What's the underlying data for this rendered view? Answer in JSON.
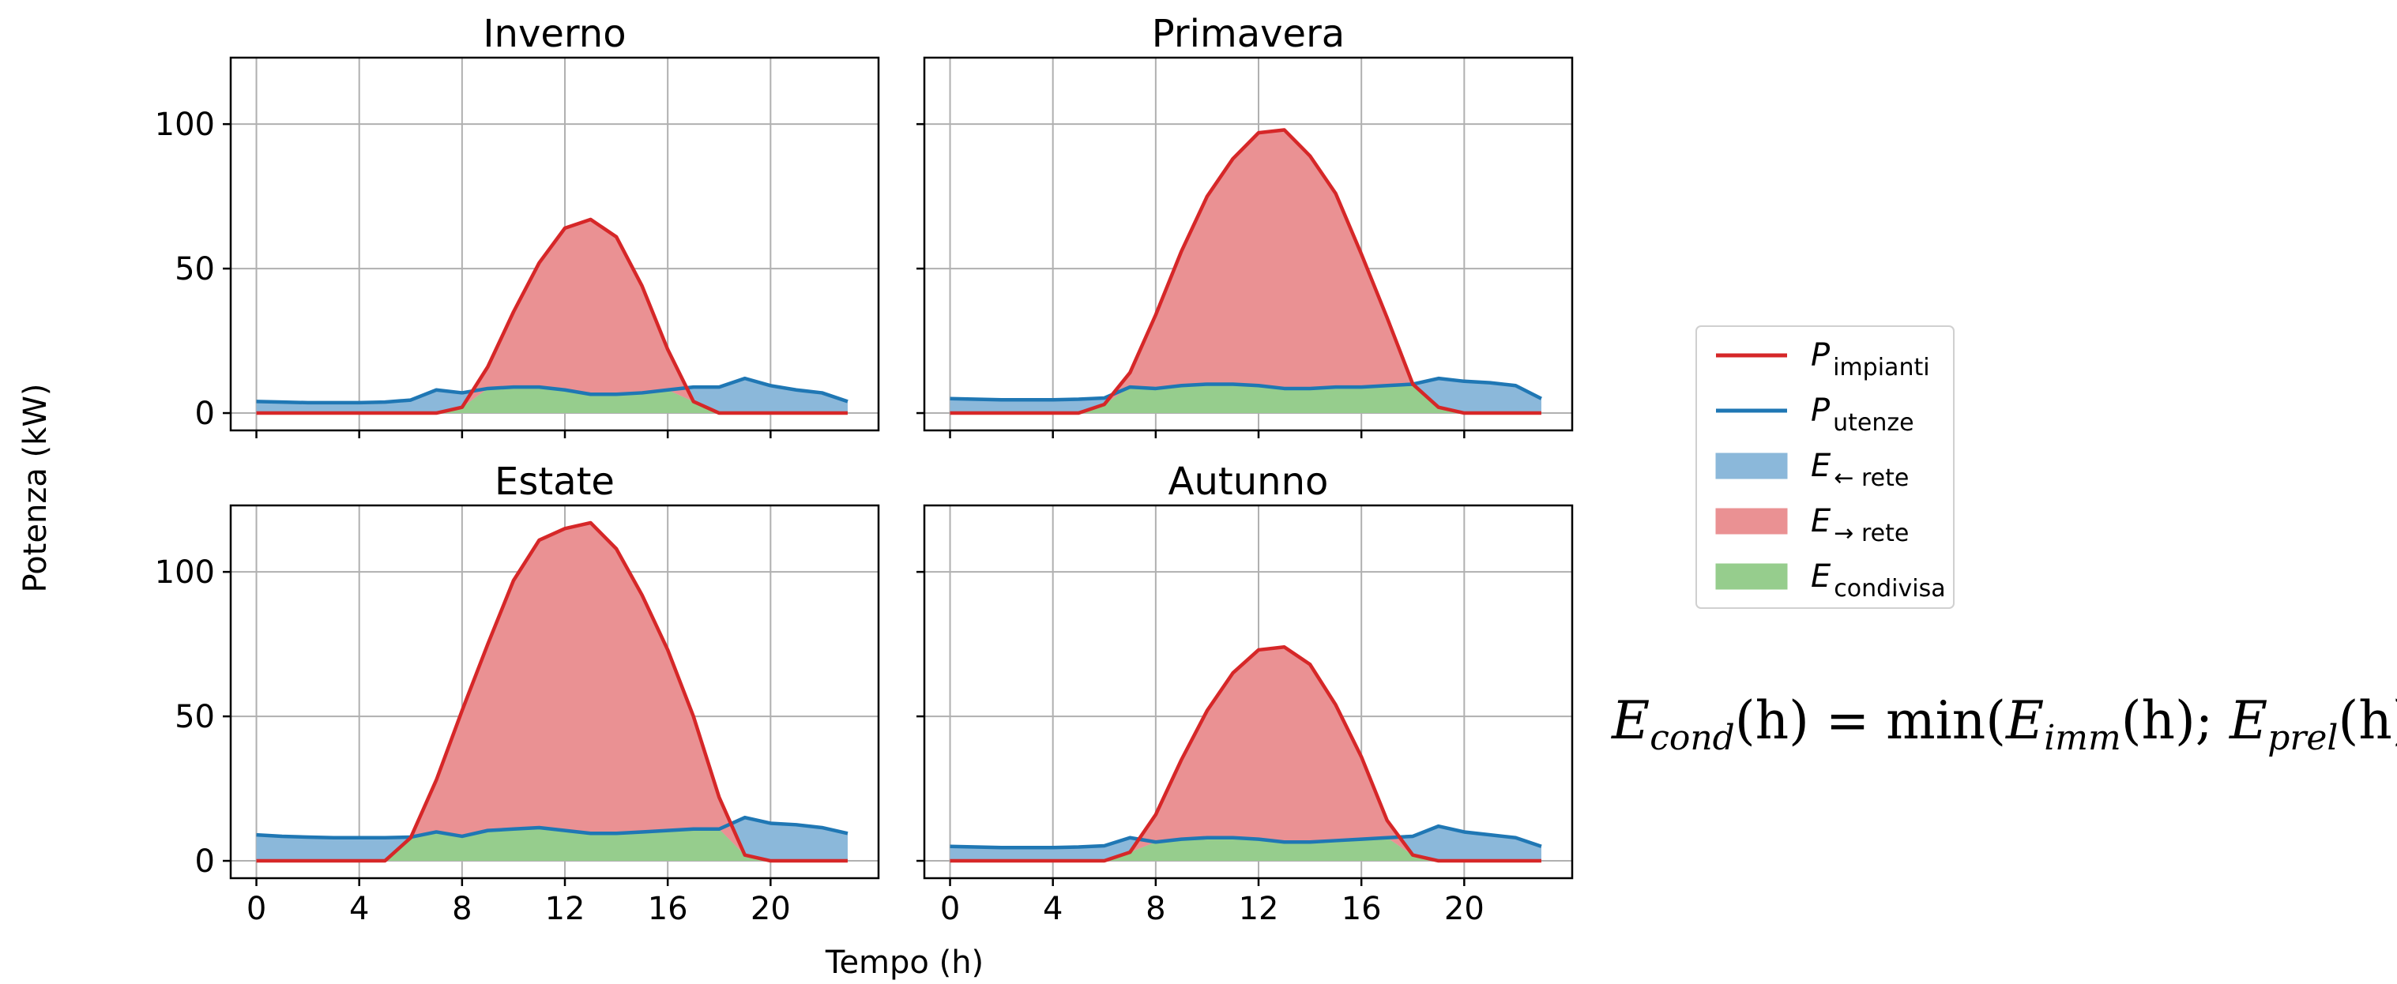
{
  "figure": {
    "ylabel": "Potenza (kW)",
    "xlabel": "Tempo (h)"
  },
  "legend": {
    "items": [
      {
        "key": "impianti",
        "symbol": "P",
        "sub": "impianti",
        "kind": "line",
        "color": "#d62728"
      },
      {
        "key": "utenze",
        "symbol": "P",
        "sub": "utenze",
        "kind": "line",
        "color": "#1f77b4"
      },
      {
        "key": "prelievo",
        "symbol": "E",
        "sub": "← rete",
        "kind": "patch",
        "color": "#8bb8da"
      },
      {
        "key": "immissione",
        "symbol": "E",
        "sub": "→ rete",
        "kind": "patch",
        "color": "#ea9193"
      },
      {
        "key": "condivisa",
        "symbol": "E",
        "sub": "condivisa",
        "kind": "patch",
        "color": "#96cd8d"
      }
    ],
    "placement": "center-right"
  },
  "formula": {
    "lhs_symbol": "E",
    "lhs_sub": "cond",
    "arg": "(h) = min(",
    "e1": "E",
    "e1_sub": "imm",
    "mid": "(h); ",
    "e2": "E",
    "e2_sub": "prel",
    "end": "(h))"
  },
  "chart_data": [
    {
      "type": "area",
      "title": "Inverno",
      "x": [
        0,
        1,
        2,
        3,
        4,
        5,
        6,
        7,
        8,
        9,
        10,
        11,
        12,
        13,
        14,
        15,
        16,
        17,
        18,
        19,
        20,
        21,
        22,
        23
      ],
      "xticks": [
        0,
        4,
        8,
        12,
        16,
        20
      ],
      "yticks": [
        0,
        50,
        100
      ],
      "xlim": [
        -1,
        24.2
      ],
      "ylim": [
        -6,
        123
      ],
      "grid": true,
      "series": [
        {
          "name": "P impianti",
          "values": [
            0,
            0,
            0,
            0,
            0,
            0,
            0,
            0,
            2,
            16,
            35,
            52,
            64,
            67,
            61,
            44,
            22,
            4,
            0,
            0,
            0,
            0,
            0,
            0
          ]
        },
        {
          "name": "P utenze",
          "values": [
            4,
            3.8,
            3.6,
            3.6,
            3.6,
            3.8,
            4.5,
            8,
            7,
            8.5,
            9,
            9,
            8,
            6.5,
            6.5,
            7,
            8,
            9,
            9,
            12,
            9.5,
            8,
            7,
            4
          ]
        }
      ]
    },
    {
      "type": "area",
      "title": "Primavera",
      "x": [
        0,
        1,
        2,
        3,
        4,
        5,
        6,
        7,
        8,
        9,
        10,
        11,
        12,
        13,
        14,
        15,
        16,
        17,
        18,
        19,
        20,
        21,
        22,
        23
      ],
      "xticks": [
        0,
        4,
        8,
        12,
        16,
        20
      ],
      "yticks": [
        0,
        50,
        100
      ],
      "xlim": [
        -1,
        24.2
      ],
      "ylim": [
        -6,
        123
      ],
      "grid": true,
      "series": [
        {
          "name": "P impianti",
          "values": [
            0,
            0,
            0,
            0,
            0,
            0,
            3,
            14,
            34,
            56,
            75,
            88,
            97,
            98,
            89,
            76,
            55,
            33,
            10,
            2,
            0,
            0,
            0,
            0
          ]
        },
        {
          "name": "P utenze",
          "values": [
            5,
            4.8,
            4.6,
            4.6,
            4.6,
            4.8,
            5.2,
            9,
            8.5,
            9.5,
            10,
            10,
            9.5,
            8.5,
            8.5,
            9,
            9,
            9.5,
            10,
            12,
            11,
            10.5,
            9.5,
            5
          ]
        }
      ]
    },
    {
      "type": "area",
      "title": "Estate",
      "x": [
        0,
        1,
        2,
        3,
        4,
        5,
        6,
        7,
        8,
        9,
        10,
        11,
        12,
        13,
        14,
        15,
        16,
        17,
        18,
        19,
        20,
        21,
        22,
        23
      ],
      "xticks": [
        0,
        4,
        8,
        12,
        16,
        20
      ],
      "yticks": [
        0,
        50,
        100
      ],
      "xlim": [
        -1,
        24.2
      ],
      "ylim": [
        -6,
        123
      ],
      "grid": true,
      "series": [
        {
          "name": "P impianti",
          "values": [
            0,
            0,
            0,
            0,
            0,
            0,
            8,
            28,
            52,
            75,
            97,
            111,
            115,
            117,
            108,
            92,
            73,
            50,
            22,
            2,
            0,
            0,
            0,
            0
          ]
        },
        {
          "name": "P utenze",
          "values": [
            9,
            8.5,
            8.2,
            8,
            8,
            8,
            8.2,
            10,
            8.5,
            10.5,
            11,
            11.5,
            10.5,
            9.5,
            9.5,
            10,
            10.5,
            11,
            11,
            15,
            13,
            12.5,
            11.5,
            9.5
          ]
        }
      ]
    },
    {
      "type": "area",
      "title": "Autunno",
      "x": [
        0,
        1,
        2,
        3,
        4,
        5,
        6,
        7,
        8,
        9,
        10,
        11,
        12,
        13,
        14,
        15,
        16,
        17,
        18,
        19,
        20,
        21,
        22,
        23
      ],
      "xticks": [
        0,
        4,
        8,
        12,
        16,
        20
      ],
      "yticks": [
        0,
        50,
        100
      ],
      "xlim": [
        -1,
        24.2
      ],
      "ylim": [
        -6,
        123
      ],
      "grid": true,
      "series": [
        {
          "name": "P impianti",
          "values": [
            0,
            0,
            0,
            0,
            0,
            0,
            0,
            3,
            16,
            35,
            52,
            65,
            73,
            74,
            68,
            54,
            36,
            14,
            2,
            0,
            0,
            0,
            0,
            0
          ]
        },
        {
          "name": "P utenze",
          "values": [
            5,
            4.8,
            4.6,
            4.6,
            4.6,
            4.8,
            5.2,
            8,
            6.5,
            7.5,
            8,
            8,
            7.5,
            6.5,
            6.5,
            7,
            7.5,
            8,
            8.5,
            12,
            10,
            9,
            8,
            5
          ]
        }
      ]
    }
  ]
}
